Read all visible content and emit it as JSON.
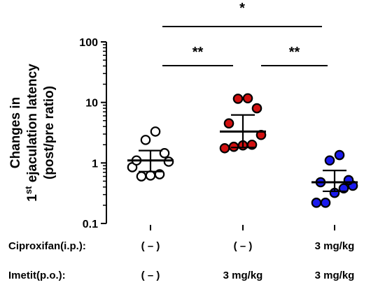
{
  "chart_data": {
    "type": "scatter",
    "ylabel_lines": [
      "Changes in",
      "1st ejaculation latency",
      "(post/pre ratio)"
    ],
    "ylabel_superscript": "st",
    "yscale": "log",
    "ylim": [
      0.1,
      100
    ],
    "yticks": [
      {
        "value": 0.1,
        "label": "0.1"
      },
      {
        "value": 1,
        "label": "1"
      },
      {
        "value": 10,
        "label": "10"
      },
      {
        "value": 100,
        "label": "100"
      }
    ],
    "groups": [
      {
        "key": "g1",
        "fill": "#ffffff",
        "edge": "#000000",
        "points": [
          0.85,
          0.6,
          0.62,
          0.65,
          1.05,
          1.1,
          1.45,
          2.4,
          3.3
        ],
        "mean": 1.1,
        "upper": 1.6,
        "lower": 0.72
      },
      {
        "key": "g2",
        "fill": "#d01010",
        "edge": "#000000",
        "points": [
          1.75,
          1.85,
          1.95,
          2.0,
          2.9,
          4.5,
          8.0,
          11.5,
          11.7
        ],
        "mean": 3.3,
        "upper": 6.2,
        "lower": 1.8
      },
      {
        "key": "g3",
        "fill": "#1a1aee",
        "edge": "#000000",
        "points": [
          0.22,
          0.22,
          0.32,
          0.38,
          0.42,
          0.48,
          0.52,
          1.1,
          1.35
        ],
        "mean": 0.48,
        "upper": 0.75,
        "lower": 0.34
      }
    ],
    "significance": [
      {
        "label": "*",
        "from": 0,
        "to": 2
      },
      {
        "label": "**",
        "from": 0,
        "to": 1
      },
      {
        "label": "**",
        "from": 1,
        "to": 2
      }
    ],
    "conditions": [
      {
        "name": "Ciproxifan(i.p.):",
        "values": [
          "( – )",
          "( – )",
          "3 mg/kg"
        ]
      },
      {
        "name": "Imetit(p.o.):",
        "values": [
          "( – )",
          "3 mg/kg",
          "3 mg/kg"
        ]
      }
    ]
  }
}
